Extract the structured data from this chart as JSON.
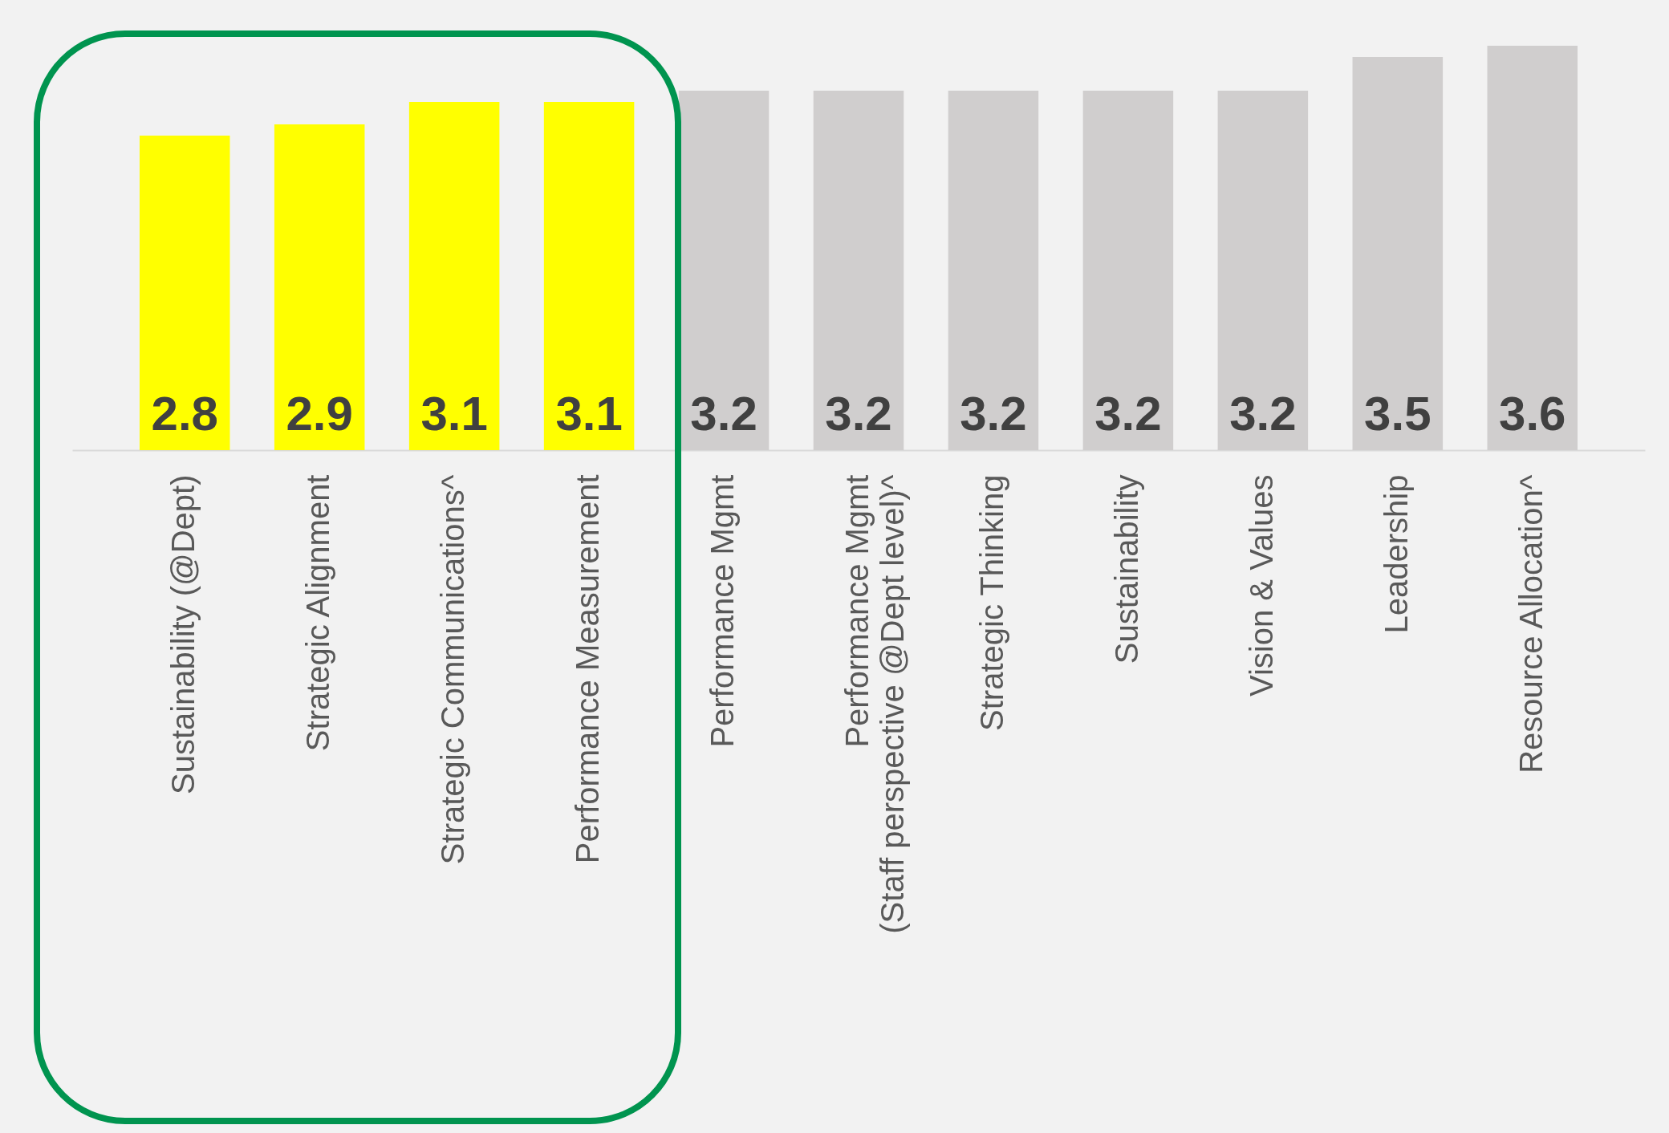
{
  "chart_data": {
    "type": "bar",
    "categories": [
      "Sustainability (@Dept)",
      "Strategic Alignment",
      "Strategic Communications^",
      "Performance Measurement",
      "Performance Mgmt",
      "Performance Mgmt\n(Staff perspective @Dept level)^",
      "Strategic Thinking",
      "Sustainability",
      "Vision & Values",
      "Leadership",
      "Resource Allocation^"
    ],
    "values": [
      2.8,
      2.9,
      3.1,
      3.1,
      3.2,
      3.2,
      3.2,
      3.2,
      3.2,
      3.5,
      3.6
    ],
    "colors": [
      "#ffff00",
      "#ffff00",
      "#ffff00",
      "#ffff00",
      "#d0cece",
      "#d0cece",
      "#d0cece",
      "#d0cece",
      "#d0cece",
      "#d0cece",
      "#d0cece"
    ],
    "data_labels": true
  }
}
